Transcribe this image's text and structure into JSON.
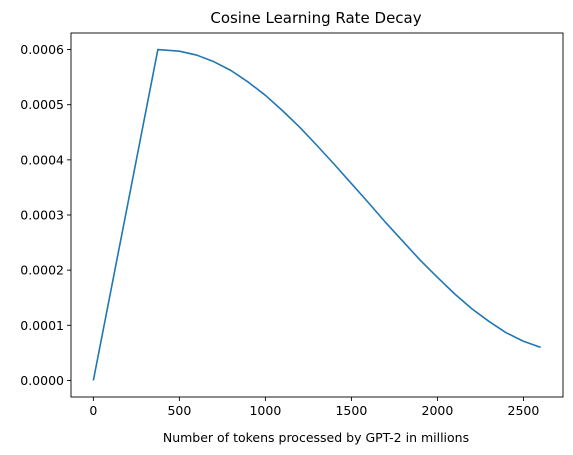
{
  "chart_data": {
    "type": "line",
    "title": "Cosine Learning Rate Decay",
    "xlabel": "Number of tokens processed by GPT-2 in millions",
    "ylabel": "",
    "xlim": [
      -130,
      2730
    ],
    "ylim": [
      -3e-05,
      0.00063
    ],
    "xticks": [
      0,
      500,
      1000,
      1500,
      2000,
      2500
    ],
    "xtick_labels": [
      "0",
      "500",
      "1000",
      "1500",
      "2000",
      "2500"
    ],
    "yticks": [
      0,
      0.0001,
      0.0002,
      0.0003,
      0.0004,
      0.0005,
      0.0006
    ],
    "ytick_labels": [
      "0.0000",
      "0.0001",
      "0.0002",
      "0.0003",
      "0.0004",
      "0.0005",
      "0.0006"
    ],
    "grid": false,
    "legend": "none",
    "series": [
      {
        "color": "#1f77b4",
        "x": [
          0,
          375,
          500,
          600,
          700,
          800,
          900,
          1000,
          1100,
          1200,
          1300,
          1400,
          1500,
          1600,
          1700,
          1800,
          1900,
          2000,
          2100,
          2200,
          2300,
          2400,
          2500,
          2600
        ],
        "y": [
          0.0,
          0.0006,
          0.000597,
          0.00059,
          0.000578,
          0.000562,
          0.000541,
          0.000517,
          0.000489,
          0.000459,
          0.000426,
          0.000392,
          0.000357,
          0.000322,
          0.000286,
          0.000252,
          0.000218,
          0.000187,
          0.000157,
          0.00013,
          0.000107,
          8.64e-05,
          7.11e-05,
          6e-05
        ]
      }
    ]
  }
}
